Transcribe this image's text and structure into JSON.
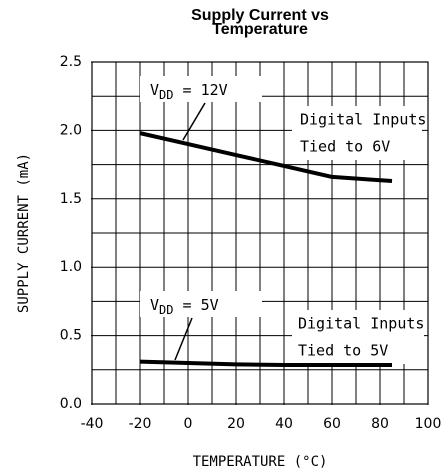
{
  "chart_data": {
    "type": "line",
    "title": [
      "Supply Current vs",
      "Temperature"
    ],
    "x_label": "TEMPERATURE (°C)",
    "y_label": "SUPPLY CURRENT (mA)",
    "x": [
      -20,
      0,
      20,
      40,
      60,
      85
    ],
    "series": [
      {
        "name": "VDD = 12V",
        "color": "#000000",
        "values": [
          1.98,
          1.9,
          1.82,
          1.74,
          1.66,
          1.63
        ]
      },
      {
        "name": "VDD = 5V",
        "color": "#000000",
        "values": [
          0.31,
          0.3,
          0.29,
          0.285,
          0.285,
          0.285
        ]
      }
    ],
    "annotations": [
      {
        "parts": [
          "V",
          "DD",
          " = 12V"
        ]
      },
      {
        "lines": [
          "Digital Inputs",
          "Tied to 6V"
        ]
      },
      {
        "parts": [
          "V",
          "DD",
          " = 5V"
        ]
      },
      {
        "lines": [
          "Digital Inputs",
          "Tied to 5V"
        ]
      }
    ],
    "xlim": [
      -40,
      100
    ],
    "xticks": [
      -40,
      -20,
      0,
      20,
      40,
      60,
      80,
      100
    ],
    "ylim": [
      0,
      2.5
    ],
    "yticks": [
      {
        "value": 0,
        "label": "0.0"
      },
      0.5,
      {
        "value": 1,
        "label": "1.0"
      },
      1.5,
      {
        "value": 2,
        "label": "2.0"
      },
      2.5
    ],
    "grid": true,
    "xgrid_step": 10,
    "ygrid_step": 0.25
  }
}
